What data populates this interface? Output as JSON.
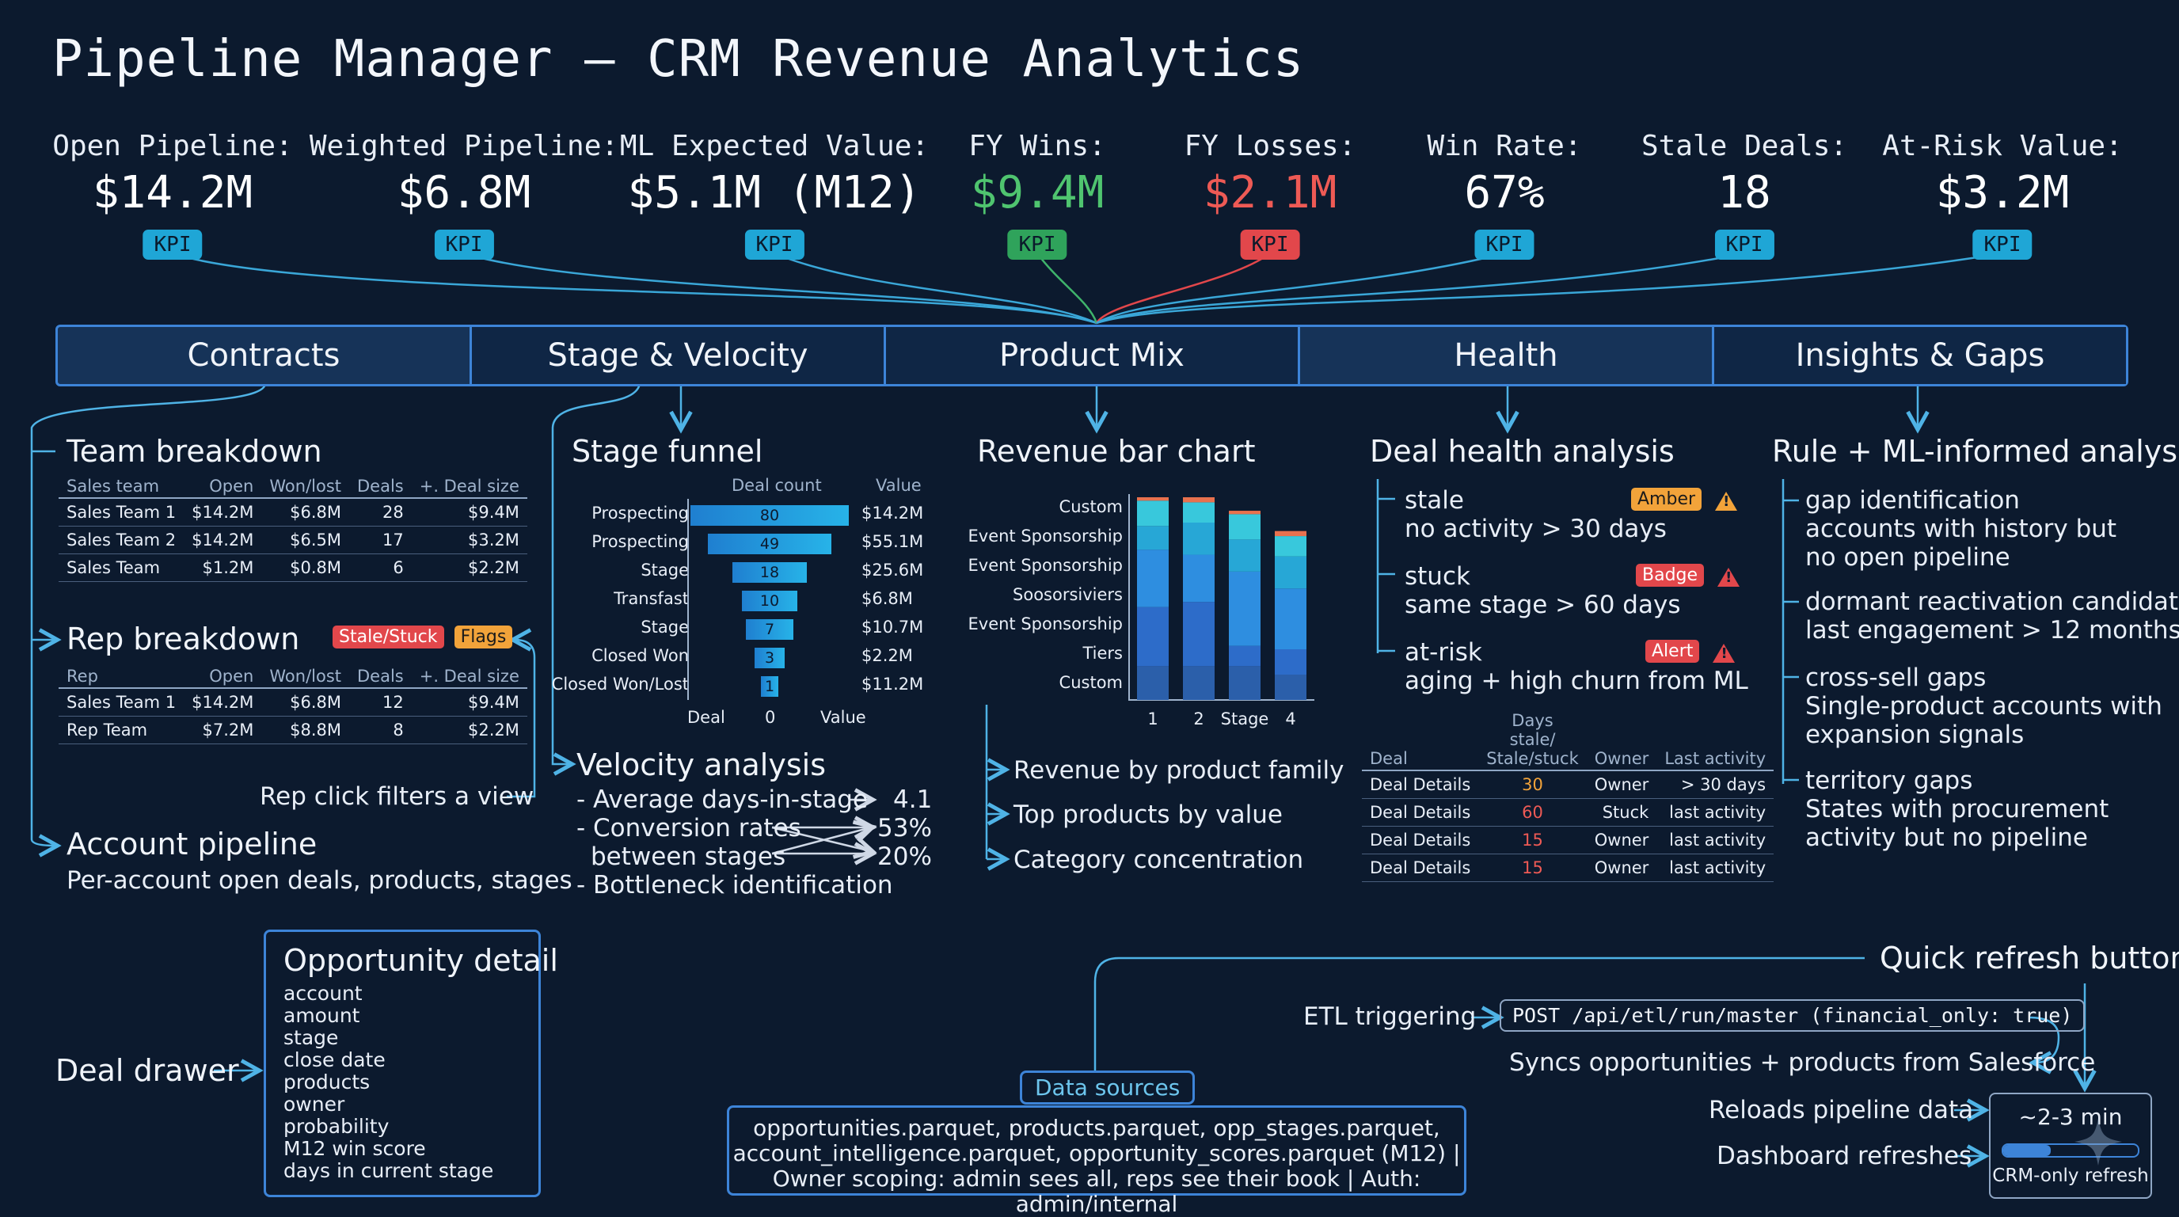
{
  "title": "Pipeline Manager — CRM Revenue Analytics",
  "kpis": [
    {
      "label": "Open Pipeline:",
      "value": "$14.2M",
      "tag": "KPI",
      "color": "#1fa6d6",
      "value_color": "#ffffff"
    },
    {
      "label": "Weighted Pipeline:",
      "value": "$6.8M",
      "tag": "KPI",
      "color": "#1fa6d6",
      "value_color": "#ffffff"
    },
    {
      "label": "ML Expected Value:",
      "value": "$5.1M (M12)",
      "tag": "KPI",
      "color": "#1fa6d6",
      "value_color": "#ffffff"
    },
    {
      "label": "FY Wins:",
      "value": "$9.4M",
      "tag": "KPI",
      "color": "#2fa35b",
      "value_color": "#4fc46f"
    },
    {
      "label": "FY Losses:",
      "value": "$2.1M",
      "tag": "KPI",
      "color": "#e2474b",
      "value_color": "#ee5a55"
    },
    {
      "label": "Win Rate:",
      "value": "67%",
      "tag": "KPI",
      "color": "#1fa6d6",
      "value_color": "#ffffff"
    },
    {
      "label": "Stale Deals:",
      "value": "18",
      "tag": "KPI",
      "color": "#1fa6d6",
      "value_color": "#ffffff"
    },
    {
      "label": "At-Risk Value:",
      "value": "$3.2M",
      "tag": "KPI",
      "color": "#1fa6d6",
      "value_color": "#ffffff"
    }
  ],
  "tabs": [
    "Contracts",
    "Stage & Velocity",
    "Product Mix",
    "Health",
    "Insights & Gaps"
  ],
  "contracts": {
    "team_title": "Team breakdown",
    "team_columns": [
      "Sales team",
      "Open",
      "Won/lost",
      "Deals",
      "+. Deal size"
    ],
    "team_rows": [
      [
        "Sales Team 1",
        "$14.2M",
        "$6.8M",
        "28",
        "$9.4M"
      ],
      [
        "Sales Team 2",
        "$14.2M",
        "$6.5M",
        "17",
        "$3.2M"
      ],
      [
        "Sales Team",
        "$1.2M",
        "$0.8M",
        "6",
        "$2.2M"
      ]
    ],
    "rep_title": "Rep breakdown",
    "rep_badges": [
      "Stale/Stuck",
      "Flags"
    ],
    "rep_columns": [
      "Rep",
      "Open",
      "Won/lost",
      "Deals",
      "+. Deal size"
    ],
    "rep_rows": [
      [
        "Sales Team 1",
        "$14.2M",
        "$6.8M",
        "12",
        "$9.4M"
      ],
      [
        "Rep Team",
        "$7.2M",
        "$8.8M",
        "8",
        "$2.2M"
      ]
    ],
    "rep_click_note": "Rep click filters a view",
    "account_title": "Account pipeline",
    "account_sub": "Per-account open deals, products, stages"
  },
  "stage": {
    "funnel_title": "Stage funnel",
    "col_count": "Deal count",
    "col_value": "Value",
    "rows": [
      {
        "label": "Prospecting",
        "count": 80,
        "value": "$14.2M"
      },
      {
        "label": "Prospecting",
        "count": 49,
        "value": "$55.1M"
      },
      {
        "label": "Stage",
        "count": 18,
        "value": "$25.6M"
      },
      {
        "label": "Transfast",
        "count": 10,
        "value": "$6.8M"
      },
      {
        "label": "Stage",
        "count": 7,
        "value": "$10.7M"
      },
      {
        "label": "Closed Won",
        "count": 3,
        "value": "$2.2M"
      },
      {
        "label": "Closed Won/Lost",
        "count": 1,
        "value": "$11.2M"
      }
    ],
    "axis_left": "Deal",
    "axis_zero": "0",
    "axis_right": "Value",
    "velocity_title": "Velocity analysis",
    "velocity_items": [
      "- Average days-in-stage",
      "- Conversion rates",
      "between stages",
      "- Bottleneck identification"
    ],
    "velocity_values": [
      "4.1",
      "53%",
      "20%"
    ]
  },
  "product": {
    "chart_title": "Revenue bar chart",
    "list": [
      "Revenue by product family",
      "Top products by value",
      "Category concentration"
    ]
  },
  "chart_data": {
    "type": "bar",
    "stacked": true,
    "title": "Revenue bar chart",
    "row_labels": [
      "Custom",
      "Event Sponsorship",
      "Event Sponsorship",
      "Soosorsiviers",
      "Event Sponsorship",
      "Tiers",
      "Custom"
    ],
    "categories": [
      "1",
      "2",
      "Stage",
      "4"
    ],
    "series": [
      {
        "values": [
          2,
          2,
          2,
          1.5
        ],
        "color": "#2b5faa"
      },
      {
        "values": [
          3.5,
          3.8,
          1.2,
          1.5
        ],
        "color": "#2d6cc9"
      },
      {
        "values": [
          3.4,
          2.8,
          4.4,
          3.6
        ],
        "color": "#2e8ee0"
      },
      {
        "values": [
          1.4,
          1.9,
          1.9,
          1.9
        ],
        "color": "#27a7d6"
      },
      {
        "values": [
          1.5,
          1.2,
          1.5,
          1.2
        ],
        "color": "#38c8dc"
      },
      {
        "values": [
          0.2,
          0.3,
          0.2,
          0.3
        ],
        "color": "#e8714e"
      }
    ],
    "grid": false
  },
  "health": {
    "title": "Deal health analysis",
    "items": [
      {
        "name": "stale",
        "desc": "no activity > 30 days",
        "badge": "Amber",
        "badge_color": "#f2a33a"
      },
      {
        "name": "stuck",
        "desc": "same stage > 60 days",
        "badge": "Badge",
        "badge_color": "#e2474b"
      },
      {
        "name": "at-risk",
        "desc": "aging + high churn from ML",
        "badge": "Alert",
        "badge_color": "#e2474b"
      }
    ],
    "columns": [
      "Deal",
      "Days stale/ Stale/stuck",
      "Owner",
      "Last activity"
    ],
    "rows": [
      [
        "Deal Details",
        "30",
        "Owner",
        "> 30 days"
      ],
      [
        "Deal Details",
        "60",
        "Stuck",
        "last activity"
      ],
      [
        "Deal Details",
        "15",
        "Owner",
        "last activity"
      ],
      [
        "Deal Details",
        "15",
        "Owner",
        "last activity"
      ]
    ]
  },
  "insights": {
    "title": "Rule + ML-informed analysis",
    "items": [
      {
        "head": "gap identification",
        "lines": [
          "accounts with history but",
          "no open pipeline"
        ]
      },
      {
        "head": "dormant reactivation candidates",
        "lines": [
          "last engagement > 12 months"
        ]
      },
      {
        "head": "cross-sell gaps",
        "lines": [
          "Single-product accounts with",
          "expansion signals"
        ]
      },
      {
        "head": "territory gaps",
        "lines": [
          "States with procurement",
          "activity but no pipeline"
        ]
      }
    ]
  },
  "drawer": {
    "label": "Deal drawer",
    "title": "Opportunity detail",
    "fields": [
      "account",
      "amount",
      "stage",
      "close date",
      "products",
      "owner",
      "probability",
      "M12 win score",
      "days in current stage"
    ]
  },
  "sources": {
    "label": "Data sources",
    "lines": [
      "opportunities.parquet, products.parquet, opp_stages.parquet,",
      "account_intelligence.parquet, opportunity_scores.parquet (M12) |",
      "Owner scoping: admin sees all, reps see their book | Auth: admin/internal"
    ]
  },
  "refresh": {
    "title": "Quick refresh button",
    "etl_label": "ETL triggering",
    "etl_code": "POST /api/etl/run/master (financial_only: true)",
    "sync": "Syncs opportunities + products from Salesforce",
    "reload": "Reloads pipeline data",
    "dashboard": "Dashboard refreshes",
    "time": "~2-3 min",
    "progress": 0.35,
    "footer": "CRM-only refresh"
  }
}
